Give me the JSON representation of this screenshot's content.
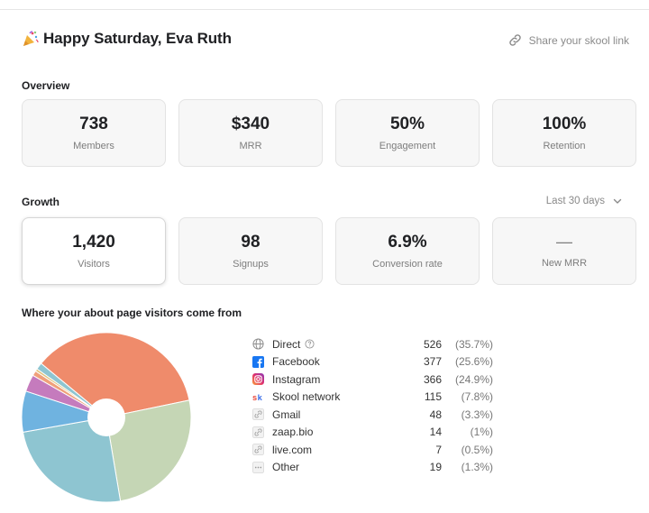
{
  "header": {
    "greeting": "Happy Saturday, Eva Ruth",
    "share_label": "Share your skool link"
  },
  "overview": {
    "title": "Overview",
    "cards": [
      {
        "value": "738",
        "label": "Members"
      },
      {
        "value": "$340",
        "label": "MRR"
      },
      {
        "value": "50%",
        "label": "Engagement"
      },
      {
        "value": "100%",
        "label": "Retention"
      }
    ]
  },
  "growth": {
    "title": "Growth",
    "range_label": "Last 30 days",
    "cards": [
      {
        "value": "1,420",
        "label": "Visitors",
        "active": true
      },
      {
        "value": "98",
        "label": "Signups"
      },
      {
        "value": "6.9%",
        "label": "Conversion rate"
      },
      {
        "value": "—",
        "label": "New MRR"
      }
    ]
  },
  "sources": {
    "title": "Where your about page visitors come from",
    "items": [
      {
        "name": "Direct",
        "count": "526",
        "pct": "(35.7%)",
        "icon": "globe-icon"
      },
      {
        "name": "Facebook",
        "count": "377",
        "pct": "(25.6%)",
        "icon": "facebook-icon"
      },
      {
        "name": "Instagram",
        "count": "366",
        "pct": "(24.9%)",
        "icon": "instagram-icon"
      },
      {
        "name": "Skool network",
        "count": "115",
        "pct": "(7.8%)",
        "icon": "skool-icon"
      },
      {
        "name": "Gmail",
        "count": "48",
        "pct": "(3.3%)",
        "icon": "link-icon"
      },
      {
        "name": "zaap.bio",
        "count": "14",
        "pct": "(1%)",
        "icon": "link-icon"
      },
      {
        "name": "live.com",
        "count": "7",
        "pct": "(0.5%)",
        "icon": "link-icon"
      },
      {
        "name": "Other",
        "count": "19",
        "pct": "(1.3%)",
        "icon": "more-icon"
      }
    ]
  },
  "chart_data": {
    "type": "pie",
    "categories": [
      "Direct",
      "Facebook",
      "Instagram",
      "Skool network",
      "Gmail",
      "zaap.bio",
      "live.com",
      "Other"
    ],
    "values": [
      526,
      377,
      366,
      115,
      48,
      14,
      7,
      19
    ],
    "colors": [
      "#ef8b6b",
      "#c5d6b5",
      "#8ec5d1",
      "#6fb3e0",
      "#c57bbd",
      "#f0a07a",
      "#e0c27a",
      "#8ec5d1"
    ],
    "donut": true
  }
}
